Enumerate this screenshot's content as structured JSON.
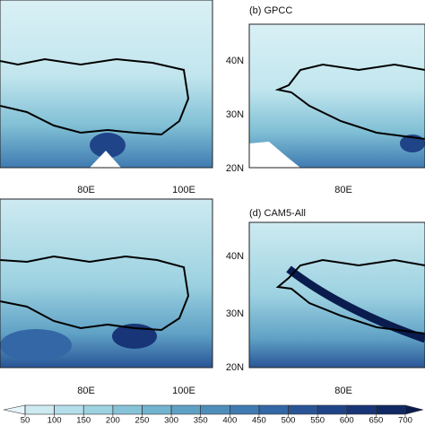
{
  "panels": [
    {
      "x_labels": [
        "80E",
        "100E"
      ]
    },
    {
      "title": "(b) GPCC",
      "x_labels": [
        "80E"
      ],
      "y_labels": [
        "40N",
        "30N",
        "20N"
      ]
    },
    {
      "x_labels": [
        "80E",
        "100E"
      ]
    },
    {
      "title": "(d) CAM5-All",
      "x_labels": [
        "80E"
      ],
      "y_labels": [
        "40N",
        "30N",
        "20N"
      ]
    }
  ],
  "colorbar": {
    "ticks": [
      50,
      100,
      150,
      200,
      250,
      300,
      350,
      400,
      450,
      500,
      550,
      600,
      650,
      700
    ],
    "colors": [
      "#e6f5f9",
      "#cdeaf1",
      "#b4dfea",
      "#9dd2e1",
      "#87c3d8",
      "#72b3cf",
      "#5fa1c5",
      "#4e8ebb",
      "#3f7bb1",
      "#3367a5",
      "#295597",
      "#204488",
      "#183577",
      "#102864",
      "#0a1c4e"
    ]
  }
}
